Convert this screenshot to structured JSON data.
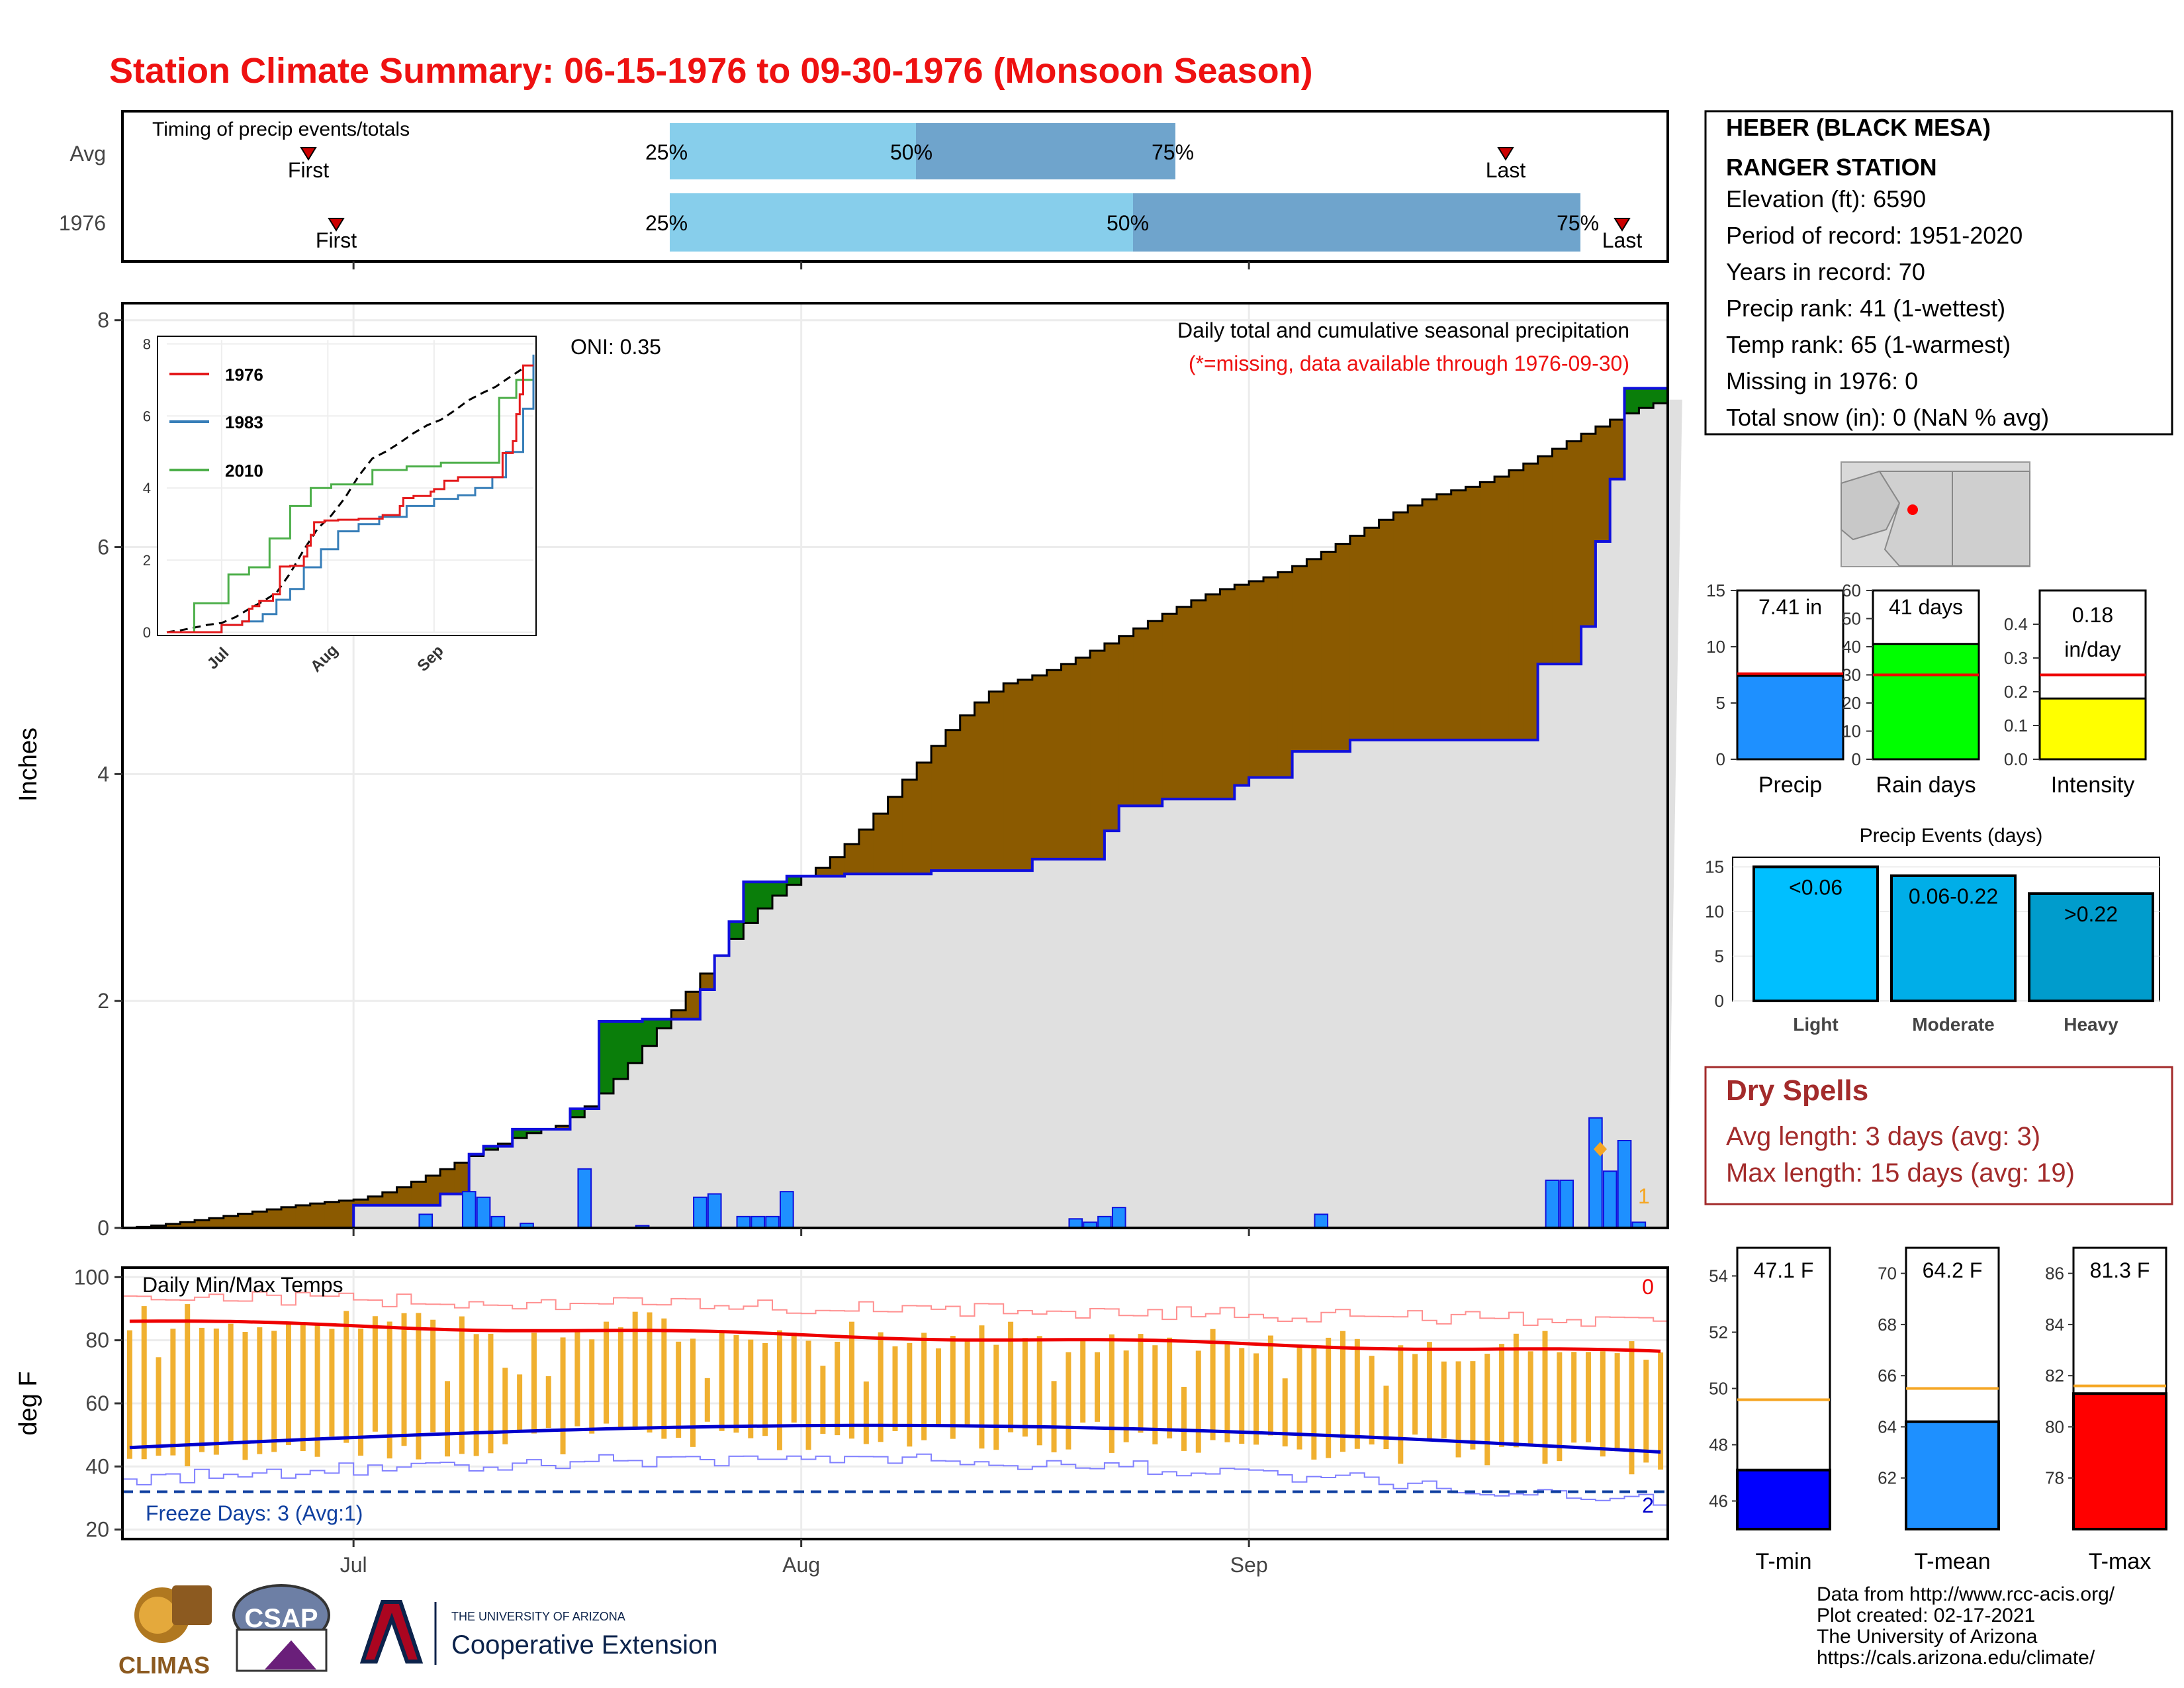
{
  "title": "Station Climate Summary: 06-15-1976 to 09-30-1976 (Monsoon Season)",
  "colors": {
    "title": "#ee1111",
    "light_blue": "#87ceeb",
    "mid_blue": "#6fa4cc",
    "brown": "#8b5a00",
    "green": "#0a7e0a",
    "grey_fill": "#e0e0e0",
    "bar_blue": "#1e90ff",
    "cum_line": "#1010dd",
    "temp_bar": "#f0b030",
    "dark_red": "#a32b2b",
    "orange": "#f5a623"
  },
  "timing": {
    "title": "Timing of precip events/totals",
    "rows": [
      "Avg",
      "1976"
    ],
    "first_label": "First",
    "last_label": "Last",
    "p25": "25%",
    "p50": "50%",
    "p75": "75%"
  },
  "station": {
    "name_line1": "HEBER (BLACK MESA)",
    "name_line2": "RANGER STATION",
    "lines": [
      "Elevation (ft): 6590",
      "Period of record: 1951-2020",
      "Years in record: 70",
      "Precip rank: 41 (1-wettest)",
      "Temp rank: 65 (1-warmest)",
      "Missing in 1976: 0",
      "Total snow (in): 0 (NaN % avg)"
    ]
  },
  "precip_panel": {
    "ylabel": "Inches",
    "y_ticks": [
      "0",
      "2",
      "4",
      "6",
      "8"
    ],
    "oni": "ONI: 0.35",
    "subtitle1": "Daily total and cumulative seasonal precipitation",
    "subtitle2": "(*=missing, data available through 1976-09-30)",
    "count_label": "1"
  },
  "inset": {
    "y_ticks": [
      "0",
      "2",
      "4",
      "6",
      "8"
    ],
    "x_ticks": [
      "Jul",
      "Aug",
      "Sep"
    ],
    "legend": [
      {
        "name": "1976",
        "color": "#e41a1c"
      },
      {
        "name": "1983",
        "color": "#377eb8"
      },
      {
        "name": "2010",
        "color": "#4daf4a"
      }
    ]
  },
  "temp_panel": {
    "title": "Daily Min/Max Temps",
    "ylabel": "deg F",
    "y_ticks": [
      "20",
      "40",
      "60",
      "80",
      "100"
    ],
    "freeze_label": "Freeze Days: 3 (Avg:1)",
    "top_count": "0",
    "bottom_count": "2"
  },
  "x_ticks": [
    "Jul",
    "Aug",
    "Sep"
  ],
  "summary_bars": [
    {
      "label": "Precip",
      "value_text": "7.41 in",
      "value": 7.41,
      "avg": 7.6,
      "ymax": 15,
      "ticks": [
        "0",
        "5",
        "10",
        "15"
      ],
      "color": "#1e90ff"
    },
    {
      "label": "Rain days",
      "value_text": "41 days",
      "value": 41,
      "avg": 30,
      "ymax": 60,
      "ticks": [
        "0",
        "10",
        "20",
        "30",
        "40",
        "50",
        "60"
      ],
      "color": "#00ff00"
    },
    {
      "label": "Intensity",
      "value_text": "0.18 in/day",
      "value_line1": "0.18",
      "value_line2": "in/day",
      "value": 0.18,
      "avg": 0.25,
      "ymax": 0.5,
      "ticks": [
        "0.0",
        "0.1",
        "0.2",
        "0.3",
        "0.4"
      ],
      "color": "#ffff00"
    }
  ],
  "precip_events": {
    "title": "Precip Events (days)",
    "ticks": [
      "0",
      "5",
      "10",
      "15"
    ],
    "bars": [
      {
        "label": "Light",
        "range": "<0.06",
        "value": 15,
        "color": "#00bfff"
      },
      {
        "label": "Moderate",
        "range": "0.06-0.22",
        "value": 14,
        "color": "#00aee8"
      },
      {
        "label": "Heavy",
        "range": ">0.22",
        "value": 12,
        "color": "#009ccc"
      }
    ]
  },
  "dry_spells": {
    "title": "Dry Spells",
    "avg_line": "Avg length: 3 days (avg: 3)",
    "max_line": "Max length: 15 days (avg: 19)"
  },
  "temp_bars": [
    {
      "label": "T-min",
      "value_text": "47.1 F",
      "value": 47.1,
      "avg": 49.6,
      "ymin": 45,
      "ymax": 55,
      "ticks": [
        "46",
        "48",
        "50",
        "52",
        "54"
      ],
      "color": "#0000ff"
    },
    {
      "label": "T-mean",
      "value_text": "64.2 F",
      "value": 64.2,
      "avg": 65.5,
      "ymin": 60,
      "ymax": 71,
      "ticks": [
        "62",
        "64",
        "66",
        "68",
        "70"
      ],
      "color": "#1e90ff"
    },
    {
      "label": "T-max",
      "value_text": "81.3 F",
      "value": 81.3,
      "avg": 81.6,
      "ymin": 76,
      "ymax": 87,
      "ticks": [
        "78",
        "80",
        "82",
        "84",
        "86"
      ],
      "color": "#ff0000"
    }
  ],
  "footer": {
    "lines": [
      "Data from http://www.rcc-acis.org/",
      "Plot created: 02-17-2021",
      "The University of Arizona",
      "https://cals.arizona.edu/climate/"
    ],
    "logo_climas": "CLIMAS",
    "logo_csap": "CSAP",
    "logo_ua_line1": "THE UNIVERSITY OF ARIZONA",
    "logo_ua_line2": "Cooperative Extension"
  },
  "chart_data": {
    "type": "area",
    "title": "Daily total and cumulative seasonal precipitation",
    "xlabel": "",
    "ylabel": "Inches",
    "ylim": [
      0,
      8
    ],
    "x_range": [
      "1976-06-15",
      "1976-09-30"
    ],
    "series": [
      {
        "name": "Cumulative 1976 precipitation",
        "x": [
          "06-15",
          "06-20",
          "06-25",
          "07-01",
          "07-03",
          "07-05",
          "07-07",
          "07-09",
          "07-10",
          "07-12",
          "07-16",
          "07-18",
          "07-21",
          "07-25",
          "07-26",
          "07-27",
          "07-28",
          "07-31",
          "08-04",
          "08-10",
          "08-17",
          "08-22",
          "08-23",
          "08-26",
          "08-31",
          "09-01",
          "09-04",
          "09-08",
          "09-10",
          "09-11",
          "09-14",
          "09-20",
          "09-21",
          "09-24",
          "09-25",
          "09-26",
          "09-27",
          "09-30"
        ],
        "values": [
          0,
          0,
          0,
          0.2,
          0.2,
          0.2,
          0.3,
          0.65,
          0.72,
          0.87,
          1.05,
          1.82,
          1.84,
          2.1,
          2.4,
          2.7,
          3.05,
          3.1,
          3.12,
          3.15,
          3.25,
          3.5,
          3.72,
          3.78,
          3.9,
          3.97,
          4.2,
          4.3,
          4.3,
          4.3,
          4.3,
          4.3,
          4.97,
          5.3,
          6.05,
          6.6,
          7.4,
          7.4
        ]
      },
      {
        "name": "Average cumulative precipitation",
        "x": [
          "06-15",
          "07-01",
          "07-15",
          "08-01",
          "08-15",
          "09-01",
          "09-15",
          "09-30"
        ],
        "values": [
          0,
          0.25,
          0.9,
          3.1,
          4.8,
          5.7,
          6.5,
          7.3
        ]
      }
    ],
    "daily_precip_1976": {
      "x": [
        "07-06",
        "07-09",
        "07-10",
        "07-11",
        "07-13",
        "07-17",
        "07-21",
        "07-25",
        "07-26",
        "07-28",
        "07-29",
        "07-30",
        "07-31",
        "08-20",
        "08-21",
        "08-22",
        "08-23",
        "09-06",
        "09-22",
        "09-23",
        "09-25",
        "09-26",
        "09-27",
        "09-28"
      ],
      "values": [
        0.12,
        0.32,
        0.27,
        0.1,
        0.04,
        0.52,
        0.02,
        0.27,
        0.3,
        0.1,
        0.1,
        0.1,
        0.32,
        0.08,
        0.05,
        0.1,
        0.18,
        0.12,
        0.42,
        0.42,
        0.97,
        0.5,
        0.77,
        0.05
      ]
    },
    "temperature": {
      "tmin_avg": 47.1,
      "tmean_avg": 64.2,
      "tmax_avg": 81.3,
      "ylim": [
        20,
        100
      ],
      "freeze_threshold": 32
    }
  }
}
